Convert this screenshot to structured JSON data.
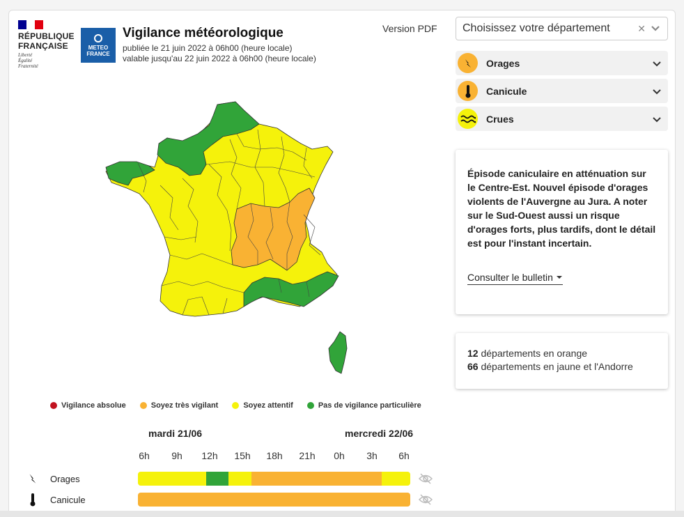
{
  "header": {
    "republic_line1": "RÉPUBLIQUE",
    "republic_line2": "FRANÇAISE",
    "motto": [
      "Liberté",
      "Égalité",
      "Fraternité"
    ],
    "meteo_logo_line1": "METEO",
    "meteo_logo_line2": "FRANCE",
    "title": "Vigilance météorologique",
    "published": "publiée le 21 juin 2022 à 06h00 (heure locale)",
    "valid": "valable jusqu'au 22 juin 2022 à 06h00 (heure locale)",
    "pdf_label": "Version PDF"
  },
  "department_select": {
    "placeholder": "Choisissez votre département"
  },
  "phenomena": [
    {
      "label": "Orages",
      "icon": "lightning-icon",
      "color": "#f9b233"
    },
    {
      "label": "Canicule",
      "icon": "thermometer-icon",
      "color": "#f9b233"
    },
    {
      "label": "Crues",
      "icon": "waves-icon",
      "color": "#f5f20b"
    }
  ],
  "bulletin": {
    "text": "Épisode caniculaire en atténuation sur le Centre-Est. Nouvel épisode d'orages violents de l'Auvergne au Jura. A noter sur le Sud-Ouest aussi un risque d'orages forts, plus tardifs, dont le détail est pour l'instant incertain.",
    "link": "Consulter le bulletin"
  },
  "stats": {
    "orange_count": "12",
    "orange_text": "départements en orange",
    "yellow_count": "66",
    "yellow_text": "départements en jaune et l'Andorre"
  },
  "legend": [
    {
      "label": "Vigilance absolue",
      "color": "#c1121f"
    },
    {
      "label": "Soyez très vigilant",
      "color": "#f9b233"
    },
    {
      "label": "Soyez attentif",
      "color": "#f5f20b"
    },
    {
      "label": "Pas de vigilance particulière",
      "color": "#31a439"
    }
  ],
  "timeline": {
    "day1": "mardi 21/06",
    "day2": "mercredi 22/06",
    "hours": [
      "6h",
      "9h",
      "12h",
      "15h",
      "18h",
      "21h",
      "0h",
      "3h",
      "6h"
    ],
    "rows": [
      {
        "label": "Orages",
        "icon": "lightning-icon",
        "segments": [
          {
            "hours": 6,
            "color": "#f5f20b"
          },
          {
            "hours": 2,
            "color": "#31a439"
          },
          {
            "hours": 2,
            "color": "#f5f20b"
          },
          {
            "hours": 11.5,
            "color": "#f9b233"
          },
          {
            "hours": 2.5,
            "color": "#f5f20b"
          }
        ]
      },
      {
        "label": "Canicule",
        "icon": "thermometer-icon",
        "segments": [
          {
            "hours": 24,
            "color": "#f9b233"
          }
        ]
      }
    ]
  },
  "colors": {
    "green": "#31a439",
    "yellow": "#f5f20b",
    "orange": "#f9b233",
    "red": "#c1121f",
    "blue": "#000091",
    "flag_red": "#e1000f"
  }
}
